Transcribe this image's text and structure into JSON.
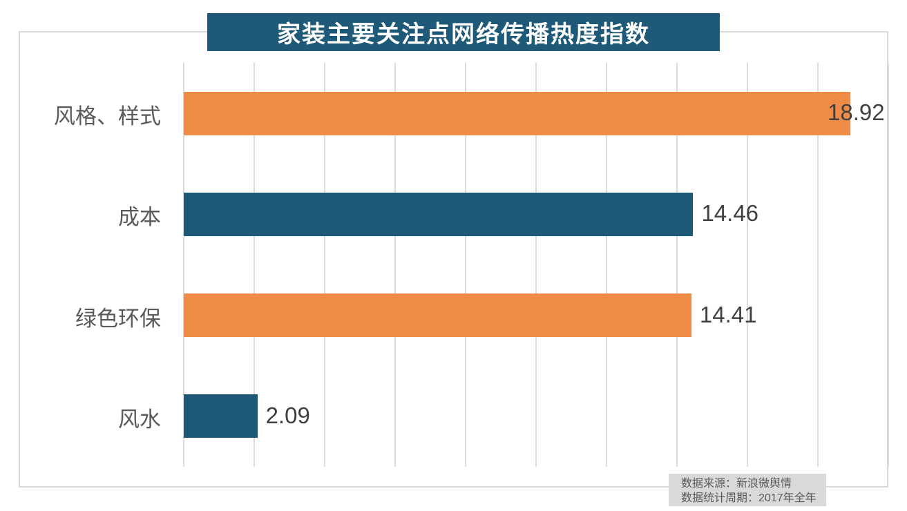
{
  "title": "家装主要关注点网络传播热度指数",
  "chart_data": {
    "type": "bar",
    "orientation": "horizontal",
    "title": "家装主要关注点网络传播热度指数",
    "categories": [
      "风格、样式",
      "成本",
      "绿色环保",
      "风水"
    ],
    "values": [
      18.92,
      14.46,
      14.41,
      2.09
    ],
    "value_labels": [
      "18.92",
      "14.46",
      "14.41",
      "2.09"
    ],
    "bar_colors": [
      "#EE8C47",
      "#1E5A78",
      "#EE8C47",
      "#1E5A78"
    ],
    "xlim": [
      0,
      20
    ],
    "x_tick_step": 2,
    "grid": true,
    "xlabel": "",
    "ylabel": "",
    "legend": "none",
    "data_label_position": "outside-end"
  },
  "source_note": {
    "line1": "数据来源：新浪微舆情",
    "line2": "数据统计周期：2017年全年"
  },
  "colors": {
    "title_bg": "#1E5A78",
    "title_text": "#FFFFFF",
    "accent_orange": "#EE8C47",
    "accent_teal": "#1E5A78",
    "grid_line": "#DBDBDB",
    "frame_border": "#D9D9D9",
    "category_text": "#595959",
    "value_text": "#404040",
    "note_bg": "#D9D9D9",
    "note_text": "#595959"
  }
}
